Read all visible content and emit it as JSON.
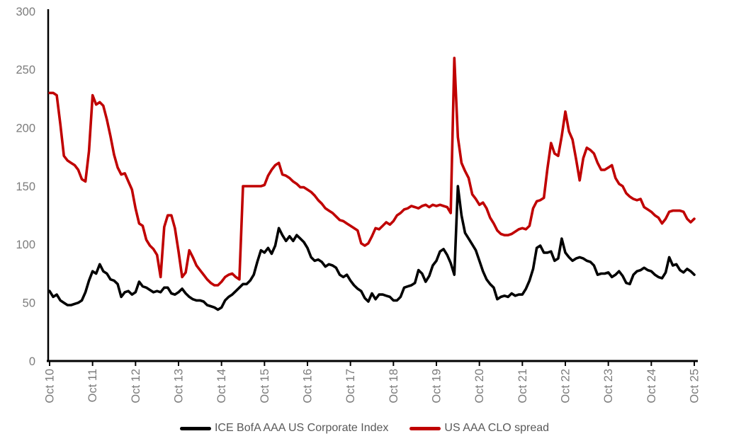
{
  "chart_data": {
    "type": "line",
    "title": "",
    "sampling": "monthly",
    "x_start_label": "Oct 10",
    "x_end_label": "Oct 25",
    "x_axis": {
      "tick_labels": [
        "Oct 10",
        "Oct 11",
        "Oct 12",
        "Oct 13",
        "Oct 14",
        "Oct 15",
        "Oct 16",
        "Oct 17",
        "Oct 18",
        "Oct 19",
        "Oct 20",
        "Oct 21",
        "Oct 22",
        "Oct 23",
        "Oct 24",
        "Oct 25"
      ]
    },
    "y_axis": {
      "min": 0,
      "max": 300,
      "tick_interval": 50,
      "tick_labels": [
        "0",
        "50",
        "100",
        "150",
        "200",
        "250",
        "300"
      ]
    },
    "grid": false,
    "legend_position": "bottom",
    "palette": {
      "axis_line": "#000000",
      "tick_label": "#7c7c7c",
      "legend_text": "#595959",
      "background": "#ffffff"
    },
    "series": [
      {
        "id": "ice-bofa-aaa-us-corporate-index",
        "name": "ICE BofA AAA US Corporate Index",
        "color": "#000000",
        "values": [
          60,
          55,
          57,
          52,
          50,
          48,
          48,
          49,
          50,
          52,
          59,
          69,
          77,
          75,
          83,
          77,
          75,
          70,
          69,
          66,
          55,
          59,
          60,
          57,
          59,
          68,
          64,
          63,
          61,
          59,
          60,
          59,
          63,
          63,
          58,
          57,
          59,
          62,
          58,
          55,
          53,
          52,
          52,
          51,
          48,
          47,
          46,
          44,
          46,
          52,
          55,
          57,
          60,
          63,
          66,
          66,
          69,
          74,
          85,
          95,
          93,
          97,
          92,
          99,
          114,
          108,
          103,
          107,
          103,
          108,
          105,
          102,
          97,
          89,
          86,
          87,
          85,
          81,
          83,
          82,
          80,
          74,
          72,
          74,
          69,
          65,
          62,
          60,
          54,
          51,
          58,
          53,
          57,
          57,
          56,
          55,
          52,
          52,
          55,
          63,
          64,
          65,
          67,
          78,
          75,
          68,
          73,
          82,
          86,
          94,
          96,
          91,
          84,
          74,
          150,
          125,
          110,
          105,
          100,
          95,
          86,
          77,
          70,
          66,
          63,
          53,
          55,
          56,
          55,
          58,
          56,
          57,
          57,
          62,
          69,
          79,
          97,
          99,
          93,
          93,
          94,
          86,
          88,
          105,
          93,
          89,
          86,
          88,
          89,
          88,
          86,
          85,
          82,
          74,
          75,
          75,
          76,
          72,
          74,
          77,
          73,
          67,
          66,
          74,
          77,
          78,
          80,
          78,
          77,
          74,
          72,
          71,
          76,
          89,
          82,
          83,
          78,
          76,
          79,
          77,
          74
        ]
      },
      {
        "id": "us-aaa-clo-spread",
        "name": "US AAA CLO spread",
        "color": "#c00000",
        "values": [
          230,
          230,
          228,
          203,
          176,
          172,
          170,
          168,
          164,
          156,
          154,
          180,
          228,
          220,
          222,
          219,
          207,
          193,
          177,
          166,
          160,
          161,
          154,
          147,
          131,
          118,
          116,
          104,
          99,
          96,
          91,
          72,
          115,
          125,
          125,
          114,
          94,
          72,
          76,
          95,
          89,
          82,
          78,
          74,
          70,
          67,
          65,
          65,
          68,
          72,
          74,
          75,
          72,
          70,
          150,
          150,
          150,
          150,
          150,
          150,
          151,
          159,
          164,
          168,
          170,
          160,
          159,
          157,
          154,
          152,
          149,
          149,
          147,
          145,
          142,
          138,
          135,
          131,
          129,
          127,
          124,
          121,
          120,
          118,
          116,
          114,
          112,
          101,
          99,
          101,
          107,
          114,
          113,
          116,
          119,
          117,
          120,
          125,
          127,
          130,
          131,
          133,
          132,
          131,
          133,
          134,
          132,
          134,
          133,
          134,
          133,
          132,
          127,
          260,
          192,
          170,
          163,
          157,
          143,
          139,
          134,
          136,
          131,
          123,
          118,
          112,
          109,
          108,
          108,
          109,
          111,
          113,
          114,
          113,
          116,
          131,
          137,
          138,
          140,
          165,
          187,
          178,
          176,
          193,
          214,
          197,
          190,
          173,
          155,
          174,
          183,
          181,
          178,
          170,
          164,
          164,
          166,
          168,
          157,
          152,
          150,
          144,
          141,
          139,
          138,
          139,
          132,
          130,
          128,
          125,
          123,
          118,
          122,
          128,
          129,
          129,
          129,
          128,
          122,
          119,
          122
        ]
      }
    ]
  }
}
